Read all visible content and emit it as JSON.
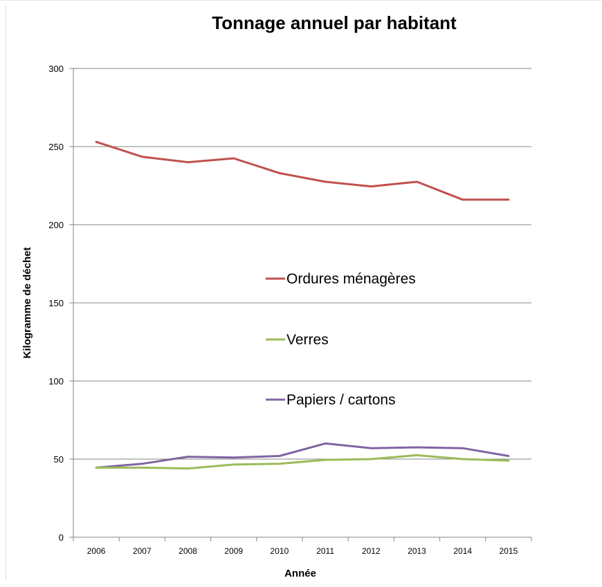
{
  "chart_data": {
    "type": "line",
    "title": "Tonnage annuel par habitant",
    "xlabel": "Année",
    "ylabel": "Kilogramme de déchet",
    "categories": [
      "2006",
      "2007",
      "2008",
      "2009",
      "2010",
      "2011",
      "2012",
      "2013",
      "2014",
      "2015"
    ],
    "yticks": [
      "0",
      "50",
      "100",
      "150",
      "200",
      "250",
      "300"
    ],
    "ylim": [
      0,
      300
    ],
    "grid": "horizontal",
    "legend_position": "center (inside plot)",
    "series": [
      {
        "name": "Ordures ménagères",
        "color": "#c0504d",
        "values": [
          253,
          243.5,
          240,
          242.5,
          233,
          227.5,
          224.5,
          227.5,
          216,
          216
        ]
      },
      {
        "name": "Verres",
        "color": "#9bbb59",
        "values": [
          44.5,
          44.5,
          44,
          46.5,
          47,
          49.5,
          50,
          52.5,
          50,
          49
        ]
      },
      {
        "name": "Papiers / cartons",
        "color": "#8064a2",
        "values": [
          44.5,
          47,
          51.5,
          51,
          52,
          60,
          57,
          57.5,
          57,
          52
        ]
      }
    ]
  }
}
